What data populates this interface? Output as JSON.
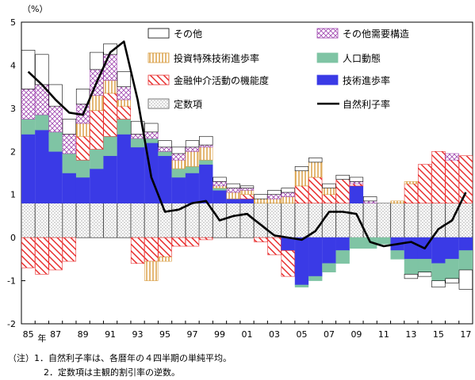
{
  "chart_data": {
    "type": "bar",
    "unit_label": "（%）",
    "x_axis_label": "年",
    "x": [
      "85",
      "86",
      "87",
      "88",
      "89",
      "90",
      "91",
      "92",
      "93",
      "94",
      "95",
      "96",
      "97",
      "98",
      "99",
      "00",
      "01",
      "02",
      "03",
      "04",
      "05",
      "06",
      "07",
      "08",
      "09",
      "10",
      "11",
      "12",
      "13",
      "14",
      "15",
      "16",
      "17"
    ],
    "x_tick_labels": [
      "85",
      "87",
      "89",
      "91",
      "93",
      "95",
      "97",
      "99",
      "01",
      "03",
      "05",
      "07",
      "09",
      "11",
      "13",
      "15",
      "17"
    ],
    "ylim": [
      -2,
      5
    ],
    "y_ticks": [
      -2,
      -1,
      0,
      1,
      2,
      3,
      4,
      5
    ],
    "grid": false,
    "legend_position": "top",
    "series": [
      {
        "name": "定数項",
        "kind": "bar",
        "pattern": "dots",
        "values": [
          0.8,
          0.8,
          0.8,
          0.8,
          0.8,
          0.8,
          0.8,
          0.8,
          0.8,
          0.8,
          0.8,
          0.8,
          0.8,
          0.8,
          0.8,
          0.8,
          0.8,
          0.8,
          0.8,
          0.8,
          0.8,
          0.8,
          0.8,
          0.8,
          0.8,
          0.8,
          0.8,
          0.8,
          0.8,
          0.8,
          0.8,
          0.8,
          0.8
        ]
      },
      {
        "name": "技術進歩率",
        "kind": "bar",
        "pattern": "solid",
        "values": [
          1.6,
          1.7,
          1.2,
          0.7,
          0.6,
          0.8,
          1.1,
          1.6,
          1.3,
          1.4,
          1.1,
          0.6,
          0.7,
          0.9,
          0.3,
          0.1,
          0.1,
          0,
          0,
          -0.3,
          -1.1,
          -0.9,
          -0.6,
          -0.3,
          0.4,
          0,
          0,
          -0.3,
          -0.5,
          -0.5,
          -0.6,
          -0.5,
          -0.3
        ]
      },
      {
        "name": "人口動態",
        "kind": "bar",
        "pattern": "solid",
        "values": [
          0.35,
          0.35,
          0.45,
          0.45,
          0.4,
          0.45,
          0.45,
          0.35,
          0.2,
          0.1,
          0.1,
          0.2,
          0.15,
          0.1,
          0.05,
          0,
          0,
          0,
          0,
          0,
          -0.05,
          -0.1,
          -0.2,
          -0.3,
          -0.25,
          -0.25,
          -0.15,
          -0.2,
          -0.35,
          -0.3,
          -0.4,
          -0.45,
          -0.45
        ]
      },
      {
        "name": "金融仲介活動の機能度",
        "kind": "bar",
        "pattern": "hatch",
        "values": [
          -0.7,
          -0.85,
          -0.75,
          -0.55,
          0.55,
          0.9,
          1.0,
          0.3,
          -0.6,
          -0.55,
          -0.45,
          -0.2,
          -0.2,
          -0.05,
          0,
          0,
          0.1,
          -0.1,
          -0.4,
          -0.6,
          0.4,
          0.6,
          0.2,
          0.55,
          0.05,
          0,
          0,
          0,
          0.45,
          0.9,
          1.2,
          1.0,
          1.1
        ]
      },
      {
        "name": "投資特殊技術進歩率",
        "kind": "bar",
        "pattern": "vlines",
        "values": [
          0,
          0,
          0,
          0,
          0.3,
          0.35,
          0.3,
          0.15,
          0,
          -0.45,
          -0.1,
          0.2,
          0.35,
          0.3,
          0.05,
          0.15,
          0.1,
          0.1,
          0.1,
          0.15,
          0.35,
          0.35,
          0.15,
          0,
          0,
          0,
          0,
          0.05,
          0.05,
          0,
          0,
          0,
          0
        ]
      },
      {
        "name": "その他需要構造",
        "kind": "bar",
        "pattern": "crosshatch",
        "values": [
          0.7,
          0.7,
          0.6,
          0.45,
          0.45,
          0.6,
          0.6,
          0.3,
          0.1,
          0.15,
          0.1,
          0.15,
          0.1,
          0.05,
          0.1,
          0.1,
          0.05,
          0,
          0.1,
          0.1,
          0,
          0,
          0,
          0,
          0.05,
          0.05,
          0,
          0,
          0,
          0,
          0,
          0.15,
          0
        ]
      },
      {
        "name": "その他",
        "kind": "bar",
        "pattern": "empty",
        "values": [
          0.9,
          0.7,
          0.5,
          0.35,
          0.35,
          0.4,
          0.25,
          0.35,
          0.3,
          0.2,
          0.15,
          0.15,
          0.15,
          0.2,
          0.1,
          0.1,
          0.05,
          0.1,
          0.1,
          0.1,
          0.1,
          0.1,
          0.1,
          0.1,
          0.1,
          0.1,
          0,
          0,
          -0.1,
          -0.1,
          -0.15,
          -0.1,
          -0.45
        ]
      },
      {
        "name": "自然利子率",
        "kind": "line",
        "values": [
          3.85,
          3.55,
          3.2,
          2.9,
          2.85,
          3.6,
          4.3,
          4.55,
          3.2,
          1.4,
          0.6,
          0.65,
          0.8,
          0.85,
          0.4,
          0.5,
          0.55,
          0.3,
          0.05,
          0.0,
          -0.05,
          0.15,
          0.6,
          0.6,
          0.55,
          -0.1,
          -0.2,
          -0.15,
          -0.1,
          -0.25,
          0.2,
          0.4,
          1.05
        ]
      }
    ]
  },
  "notes": {
    "line1": "（注）1．自然利子率は、各暦年の４四半期の単純平均。",
    "line2": "2．定数項は主観的割引率の逆数。"
  },
  "colors": {
    "technology": "#3a3ae6",
    "population": "#7fc4a4",
    "finance": "#e83030",
    "investment": "#d89a3a",
    "other_demand": "#a048b0",
    "constant": "#404040",
    "line": "#000000"
  }
}
